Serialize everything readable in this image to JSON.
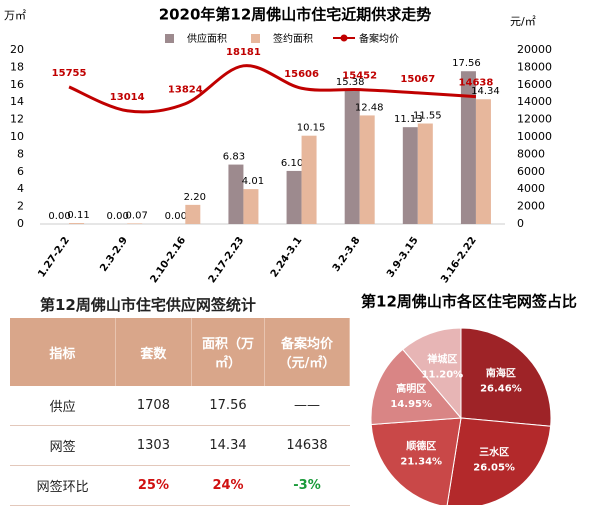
{
  "chart_data": [
    {
      "type": "bar-line",
      "title": "2020年第12周佛山市住宅近期供求走势",
      "y_label": "万㎡",
      "y2_label": "元/㎡",
      "categories": [
        "1.27-2.2",
        "2.3-2.9",
        "2.10-2.16",
        "2.17-2.23",
        "2.24-3.1",
        "3.2-3.8",
        "3.9-3.15",
        "3.16-2.22"
      ],
      "series": [
        {
          "name": "供应面积",
          "color": "#9d8a8e",
          "type": "bar",
          "values": [
            0.0,
            0.0,
            0.0,
            6.83,
            6.1,
            15.38,
            11.13,
            17.56
          ],
          "value_labels": [
            "0.00",
            "0.00",
            "0.00",
            "6.83",
            "6.10",
            "15.38",
            "11.13",
            "17.56"
          ]
        },
        {
          "name": "签约面积",
          "color": "#e7b79c",
          "type": "bar",
          "values": [
            0.11,
            0.07,
            2.2,
            4.01,
            10.15,
            12.48,
            11.55,
            14.34
          ],
          "value_labels": [
            "0.11",
            "0.07",
            "2.20",
            "4.01",
            "10.15",
            "12.48",
            "11.55",
            "14.34"
          ]
        },
        {
          "name": "备案均价",
          "color": "#c00000",
          "type": "line",
          "axis": "y2",
          "values": [
            15755,
            13014,
            13824,
            18181,
            15606,
            15452,
            15067,
            14638
          ]
        }
      ],
      "ylim": [
        0,
        20
      ],
      "yticks": [
        0,
        2,
        4,
        6,
        8,
        10,
        12,
        14,
        16,
        18,
        20
      ],
      "y2lim": [
        0,
        20000
      ],
      "y2ticks": [
        0,
        2000,
        4000,
        6000,
        8000,
        10000,
        12000,
        14000,
        16000,
        18000,
        20000
      ]
    },
    {
      "type": "pie",
      "title": "第12周佛山市各区住宅网签占比",
      "categories": [
        "南海区",
        "三水区",
        "顺德区",
        "高明区",
        "禅城区"
      ],
      "values": [
        26.46,
        26.05,
        21.34,
        14.95,
        11.2
      ],
      "value_labels": [
        "26.46%",
        "26.05%",
        "21.34%",
        "14.95%",
        "11.20%"
      ],
      "colors": [
        "#9e2327",
        "#b3292b",
        "#c94848",
        "#d98585",
        "#e7b5b5"
      ]
    }
  ],
  "table": {
    "title": "第12周佛山市住宅供应网签统计",
    "header": [
      "指标",
      "套数",
      "面积（万㎡）",
      "备案均价（元/㎡）"
    ],
    "rows": [
      [
        "供应",
        "1708",
        "17.56",
        "——"
      ],
      [
        "网签",
        "1303",
        "14.34",
        "14638"
      ],
      [
        "网签环比",
        "25%",
        "24%",
        "-3%"
      ]
    ]
  }
}
